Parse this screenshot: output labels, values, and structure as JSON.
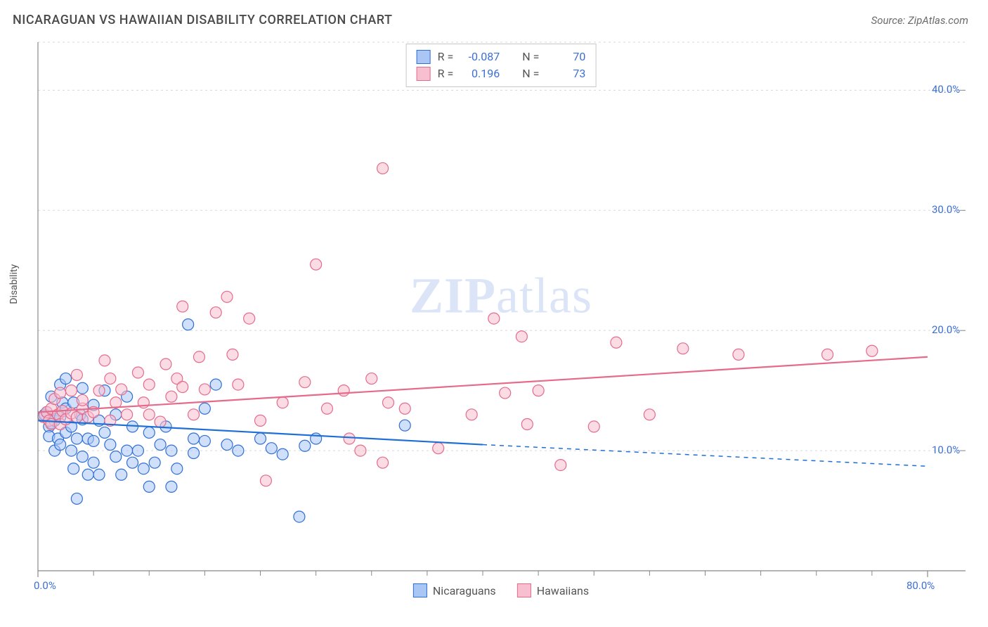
{
  "title": "NICARAGUAN VS HAWAIIAN DISABILITY CORRELATION CHART",
  "source": "Source: ZipAtlas.com",
  "y_axis_label": "Disability",
  "watermark": "ZIPatlas",
  "chart": {
    "type": "scatter",
    "background_color": "#ffffff",
    "grid_color": "#d8d8d8",
    "axis_line_color": "#888888",
    "tick_color": "#888888",
    "xlim": [
      0,
      80
    ],
    "ylim": [
      0,
      44
    ],
    "x_ticks_major": [
      0,
      80
    ],
    "x_ticks_minor": [
      5,
      10,
      15,
      20,
      25,
      30,
      35,
      40,
      45,
      50,
      55,
      60,
      65,
      70,
      75
    ],
    "y_ticks_major": [
      10,
      20,
      30,
      40
    ],
    "x_tick_labels": {
      "0": "0.0%",
      "80": "80.0%"
    },
    "y_tick_labels": {
      "10": "10.0%",
      "20": "20.0%",
      "30": "30.0%",
      "40": "40.0%"
    },
    "tick_label_color": "#3b6fd6",
    "tick_label_fontsize": 15,
    "marker_radius": 8,
    "marker_stroke_width": 1.2,
    "trend_line_width": 2.2,
    "series": [
      {
        "name": "Nicaraguans",
        "fill_color": "#a9c6f5",
        "fill_opacity": 0.55,
        "stroke_color": "#2f6fd6",
        "trend_color": "#1f6fd6",
        "trend": {
          "x1": 0,
          "y1": 12.5,
          "x2": 40,
          "y2": 10.5,
          "x_extend": 80,
          "y_extend": 8.7,
          "dash_after": 40
        },
        "R": "-0.087",
        "N": "70",
        "points": [
          [
            0.5,
            12.9
          ],
          [
            0.6,
            13.0
          ],
          [
            0.8,
            13.2
          ],
          [
            1.0,
            12.0
          ],
          [
            1.0,
            11.2
          ],
          [
            1.2,
            14.5
          ],
          [
            1.2,
            12.3
          ],
          [
            1.5,
            12.5
          ],
          [
            1.5,
            10.0
          ],
          [
            1.8,
            13.0
          ],
          [
            1.8,
            11.0
          ],
          [
            2.0,
            15.5
          ],
          [
            2.0,
            12.8
          ],
          [
            2.0,
            10.5
          ],
          [
            2.2,
            14.0
          ],
          [
            2.5,
            16.0
          ],
          [
            2.5,
            13.5
          ],
          [
            2.5,
            11.5
          ],
          [
            3.0,
            12.0
          ],
          [
            3.0,
            10.0
          ],
          [
            3.2,
            14.0
          ],
          [
            3.2,
            8.5
          ],
          [
            3.5,
            6.0
          ],
          [
            3.5,
            11.0
          ],
          [
            3.8,
            13.0
          ],
          [
            4.0,
            15.2
          ],
          [
            4.0,
            12.6
          ],
          [
            4.0,
            9.5
          ],
          [
            4.5,
            11.0
          ],
          [
            4.5,
            8.0
          ],
          [
            5.0,
            13.8
          ],
          [
            5.0,
            10.8
          ],
          [
            5.0,
            9.0
          ],
          [
            5.5,
            12.5
          ],
          [
            5.5,
            8.0
          ],
          [
            6.0,
            11.5
          ],
          [
            6.0,
            15.0
          ],
          [
            6.5,
            10.5
          ],
          [
            7.0,
            9.5
          ],
          [
            7.0,
            13.0
          ],
          [
            7.5,
            8.0
          ],
          [
            8.0,
            10.0
          ],
          [
            8.0,
            14.5
          ],
          [
            8.5,
            9.0
          ],
          [
            8.5,
            12.0
          ],
          [
            9.0,
            10.0
          ],
          [
            9.5,
            8.5
          ],
          [
            10.0,
            11.5
          ],
          [
            10.0,
            7.0
          ],
          [
            10.5,
            9.0
          ],
          [
            11.0,
            10.5
          ],
          [
            11.5,
            12.0
          ],
          [
            12.0,
            7.0
          ],
          [
            12.0,
            10.0
          ],
          [
            12.5,
            8.5
          ],
          [
            13.5,
            20.5
          ],
          [
            14.0,
            11.0
          ],
          [
            14.0,
            9.8
          ],
          [
            15.0,
            10.8
          ],
          [
            15.0,
            13.5
          ],
          [
            16.0,
            15.5
          ],
          [
            17.0,
            10.5
          ],
          [
            18.0,
            10.0
          ],
          [
            20.0,
            11.0
          ],
          [
            21.0,
            10.2
          ],
          [
            22.0,
            9.7
          ],
          [
            23.5,
            4.5
          ],
          [
            24.0,
            10.4
          ],
          [
            25.0,
            11.0
          ],
          [
            33.0,
            12.1
          ]
        ]
      },
      {
        "name": "Hawaiians",
        "fill_color": "#f7bfcf",
        "fill_opacity": 0.55,
        "stroke_color": "#e56b8b",
        "trend_color": "#e56b8b",
        "trend": {
          "x1": 0,
          "y1": 13.2,
          "x2": 80,
          "y2": 17.8,
          "x_extend": 80,
          "y_extend": 17.8,
          "dash_after": 80
        },
        "R": "0.196",
        "N": "73",
        "points": [
          [
            0.5,
            12.8
          ],
          [
            0.8,
            13.2
          ],
          [
            1.0,
            12.5
          ],
          [
            1.2,
            13.5
          ],
          [
            1.2,
            12.2
          ],
          [
            1.5,
            14.3
          ],
          [
            1.8,
            13.0
          ],
          [
            2.0,
            12.2
          ],
          [
            2.0,
            14.8
          ],
          [
            2.2,
            13.3
          ],
          [
            2.5,
            12.6
          ],
          [
            3.0,
            13.1
          ],
          [
            3.0,
            15.0
          ],
          [
            3.5,
            16.3
          ],
          [
            3.5,
            12.8
          ],
          [
            4.0,
            13.5
          ],
          [
            4.0,
            14.2
          ],
          [
            4.5,
            12.8
          ],
          [
            5.0,
            13.2
          ],
          [
            5.5,
            15.0
          ],
          [
            6.0,
            17.5
          ],
          [
            6.5,
            16.0
          ],
          [
            6.5,
            12.5
          ],
          [
            7.0,
            14.0
          ],
          [
            7.5,
            15.1
          ],
          [
            8.0,
            13.0
          ],
          [
            9.0,
            16.5
          ],
          [
            9.5,
            14.0
          ],
          [
            10.0,
            13.0
          ],
          [
            10.0,
            15.5
          ],
          [
            11.0,
            12.4
          ],
          [
            11.5,
            17.2
          ],
          [
            12.0,
            14.5
          ],
          [
            12.5,
            16.0
          ],
          [
            13.0,
            22.0
          ],
          [
            13.0,
            15.3
          ],
          [
            14.0,
            13.0
          ],
          [
            14.5,
            17.8
          ],
          [
            15.0,
            15.1
          ],
          [
            16.0,
            21.5
          ],
          [
            17.0,
            22.8
          ],
          [
            17.5,
            18.0
          ],
          [
            18.0,
            15.5
          ],
          [
            19.0,
            21.0
          ],
          [
            20.0,
            12.5
          ],
          [
            20.5,
            7.5
          ],
          [
            22.0,
            14.0
          ],
          [
            24.0,
            15.7
          ],
          [
            25.0,
            25.5
          ],
          [
            26.0,
            13.5
          ],
          [
            27.5,
            15.0
          ],
          [
            28.0,
            11.0
          ],
          [
            29.0,
            10.0
          ],
          [
            30.0,
            16.0
          ],
          [
            31.0,
            33.5
          ],
          [
            31.0,
            9.0
          ],
          [
            31.5,
            14.0
          ],
          [
            33.0,
            13.5
          ],
          [
            36.0,
            10.2
          ],
          [
            39.0,
            13.0
          ],
          [
            41.0,
            21.0
          ],
          [
            42.0,
            14.8
          ],
          [
            43.5,
            19.5
          ],
          [
            44.0,
            12.2
          ],
          [
            45.0,
            15.0
          ],
          [
            47.0,
            8.8
          ],
          [
            50.0,
            12.0
          ],
          [
            52.0,
            19.0
          ],
          [
            55.0,
            13.0
          ],
          [
            58.0,
            18.5
          ],
          [
            63.0,
            18.0
          ],
          [
            71.0,
            18.0
          ],
          [
            75.0,
            18.3
          ]
        ]
      }
    ]
  },
  "legend_top_labels": {
    "R": "R =",
    "N": "N ="
  },
  "legend_bottom": [
    {
      "label": "Nicaraguans",
      "fill": "#a9c6f5",
      "stroke": "#2f6fd6"
    },
    {
      "label": "Hawaiians",
      "fill": "#f7bfcf",
      "stroke": "#e56b8b"
    }
  ]
}
